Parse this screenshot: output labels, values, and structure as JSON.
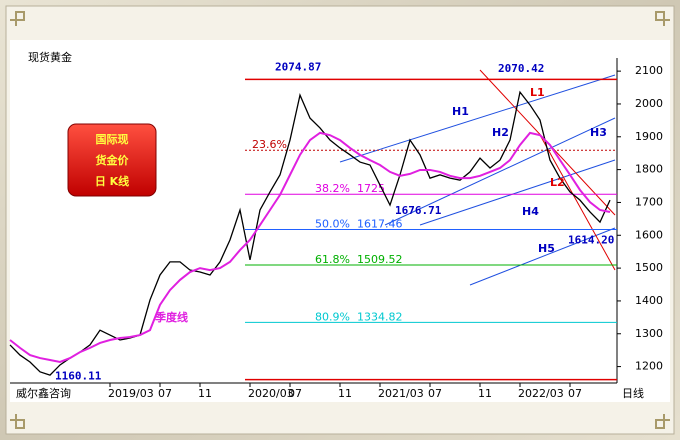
{
  "chart_data": {
    "type": "line",
    "title": "现货黄金",
    "source": "威尔鑫咨询",
    "period_label": "日线",
    "box_lines": [
      "国际现",
      "货金价",
      "日  K线"
    ],
    "categories": [
      null,
      null,
      null,
      null,
      null,
      null,
      null,
      null,
      null,
      null,
      "2019/03",
      null,
      null,
      null,
      null,
      "07",
      null,
      null,
      null,
      "11",
      null,
      null,
      null,
      null,
      "2020/03",
      null,
      null,
      null,
      "07",
      null,
      null,
      null,
      null,
      "11",
      null,
      null,
      null,
      "2021/03",
      null,
      null,
      null,
      null,
      "07",
      null,
      null,
      null,
      null,
      "11",
      null,
      null,
      null,
      "2022/03",
      null,
      null,
      null,
      null,
      "07",
      null,
      null,
      null,
      null
    ],
    "series": [
      {
        "color": "#000000",
        "values": [
          1266,
          1235,
          1214,
          1184,
          1174,
          1205,
          1226,
          1244,
          1266,
          1311,
          1296,
          1281,
          1287,
          1296,
          1403,
          1479,
          1519,
          1519,
          1494,
          1488,
          1479,
          1519,
          1586,
          1677,
          1525,
          1677,
          1732,
          1784,
          1890,
          2027,
          1957,
          1927,
          1890,
          1866,
          1845,
          1823,
          1814,
          1753,
          1692,
          1784,
          1890,
          1845,
          1774,
          1784,
          1774,
          1768,
          1793,
          1835,
          1805,
          1829,
          1890,
          2036,
          1997,
          1951,
          1829,
          1774,
          1732,
          1707,
          1671,
          1640,
          1707
        ]
      },
      {
        "name": "季度线",
        "color": "#e020e0",
        "values": [
          1281,
          1257,
          1235,
          1226,
          1220,
          1214,
          1226,
          1244,
          1257,
          1272,
          1281,
          1287,
          1290,
          1296,
          1311,
          1388,
          1433,
          1464,
          1488,
          1500,
          1494,
          1500,
          1519,
          1555,
          1586,
          1631,
          1677,
          1723,
          1784,
          1845,
          1890,
          1912,
          1905,
          1890,
          1866,
          1845,
          1829,
          1814,
          1793,
          1781,
          1787,
          1799,
          1799,
          1793,
          1781,
          1774,
          1774,
          1781,
          1793,
          1805,
          1829,
          1875,
          1912,
          1905,
          1875,
          1829,
          1784,
          1738,
          1701,
          1677,
          1671
        ]
      }
    ],
    "ylim": [
      1150,
      2140
    ],
    "yticks": [
      1200,
      1300,
      1400,
      1500,
      1600,
      1700,
      1800,
      1900,
      2000,
      2100
    ],
    "levels": [
      {
        "value": 2074.87,
        "color": "#e00000"
      },
      {
        "value": 1160.11,
        "color": "#e00000"
      },
      {
        "label": "23.6%",
        "value": 1859,
        "color": "#c00000",
        "dashed": true
      },
      {
        "label": "38.2%",
        "value": 1725,
        "value_label": "1725",
        "color": "#e000e0"
      },
      {
        "label": "50.0%",
        "value": 1617.46,
        "value_label": "1617.46",
        "color": "#2060ff"
      },
      {
        "label": "61.8%",
        "value": 1509.52,
        "value_label": "1509.52",
        "color": "#00b000"
      },
      {
        "label": "80.9%",
        "value": 1334.82,
        "value_label": "1334.82",
        "color": "#00c8d0"
      }
    ],
    "annotations": [
      {
        "value": 2074.87,
        "label": "2074.87"
      },
      {
        "value": 2070.42,
        "label": "2070.42"
      },
      {
        "value": 1676.71,
        "label": "1676.71"
      },
      {
        "value": 1614.2,
        "label": "1614.20"
      },
      {
        "value": 1160.11,
        "label": "1160.11"
      }
    ],
    "channel_labels": [
      "H1",
      "H2",
      "H3",
      "H4",
      "H5",
      "L1",
      "L2"
    ]
  }
}
